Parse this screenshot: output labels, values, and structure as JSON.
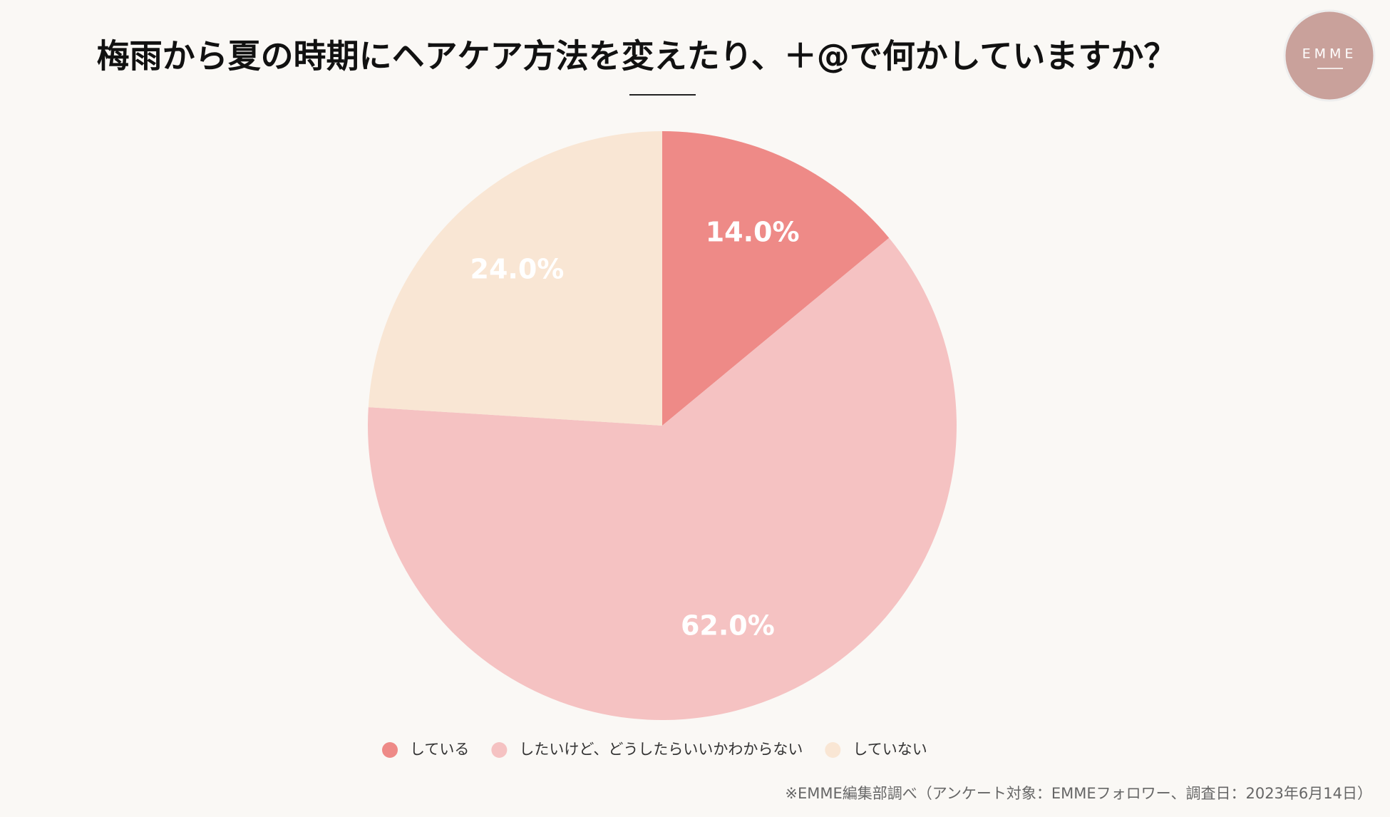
{
  "chart_data": {
    "type": "pie",
    "title": "梅雨から夏の時期にヘアケア方法を変えたり、＋@で何かしていますか？",
    "logo": "EMME",
    "categories": [
      "している",
      "したいけど、どうしたらいいかわからない",
      "していない"
    ],
    "values": [
      14,
      62,
      24
    ],
    "value_labels": [
      "14.0%",
      "62.0%",
      "24.0%"
    ],
    "colors": [
      "#ee8a87",
      "#f5c2c2",
      "#f9e6d4"
    ],
    "legend": "bottom",
    "source": "※EMME編集部調べ（アンケート対象：EMMEフォロワー、調査日：2023年6月14日）"
  }
}
